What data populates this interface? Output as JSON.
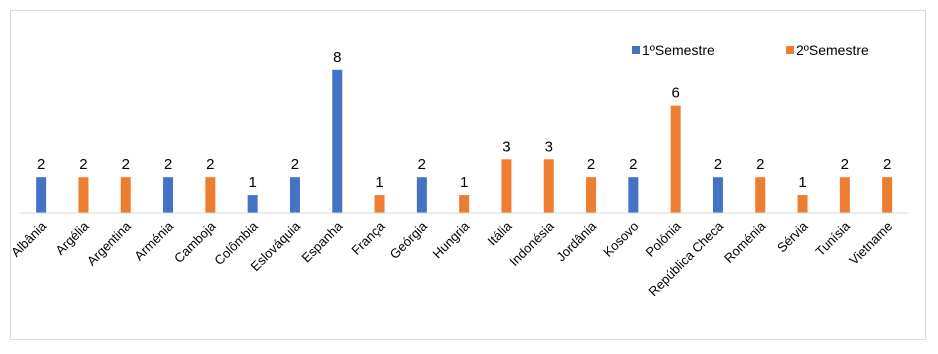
{
  "chart_data": {
    "type": "bar",
    "title": "",
    "xlabel": "",
    "ylabel": "",
    "ylim": [
      0,
      8
    ],
    "grid": false,
    "legend_position": "top-right",
    "categories": [
      "Albânia",
      "Argélia",
      "Argentina",
      "Arménia",
      "Camboja",
      "Colômbia",
      "Eslováquia",
      "Espanha",
      "França",
      "Geórgia",
      "Hungria",
      "Itália",
      "Indonésia",
      "Jordânia",
      "Kosovo",
      "Polónia",
      "República Checa",
      "Roménia",
      "Sérvia",
      "Tunísia",
      "Vietname"
    ],
    "series": [
      {
        "name": "1ºSemestre",
        "color": "#4472c4",
        "values": [
          2,
          null,
          null,
          2,
          null,
          1,
          2,
          8,
          null,
          2,
          null,
          null,
          null,
          null,
          2,
          null,
          2,
          null,
          null,
          null,
          null
        ]
      },
      {
        "name": "2ºSemestre",
        "color": "#ed7d31",
        "values": [
          null,
          2,
          2,
          null,
          2,
          null,
          null,
          null,
          1,
          null,
          1,
          3,
          3,
          2,
          null,
          6,
          null,
          2,
          1,
          2,
          2
        ]
      }
    ]
  }
}
